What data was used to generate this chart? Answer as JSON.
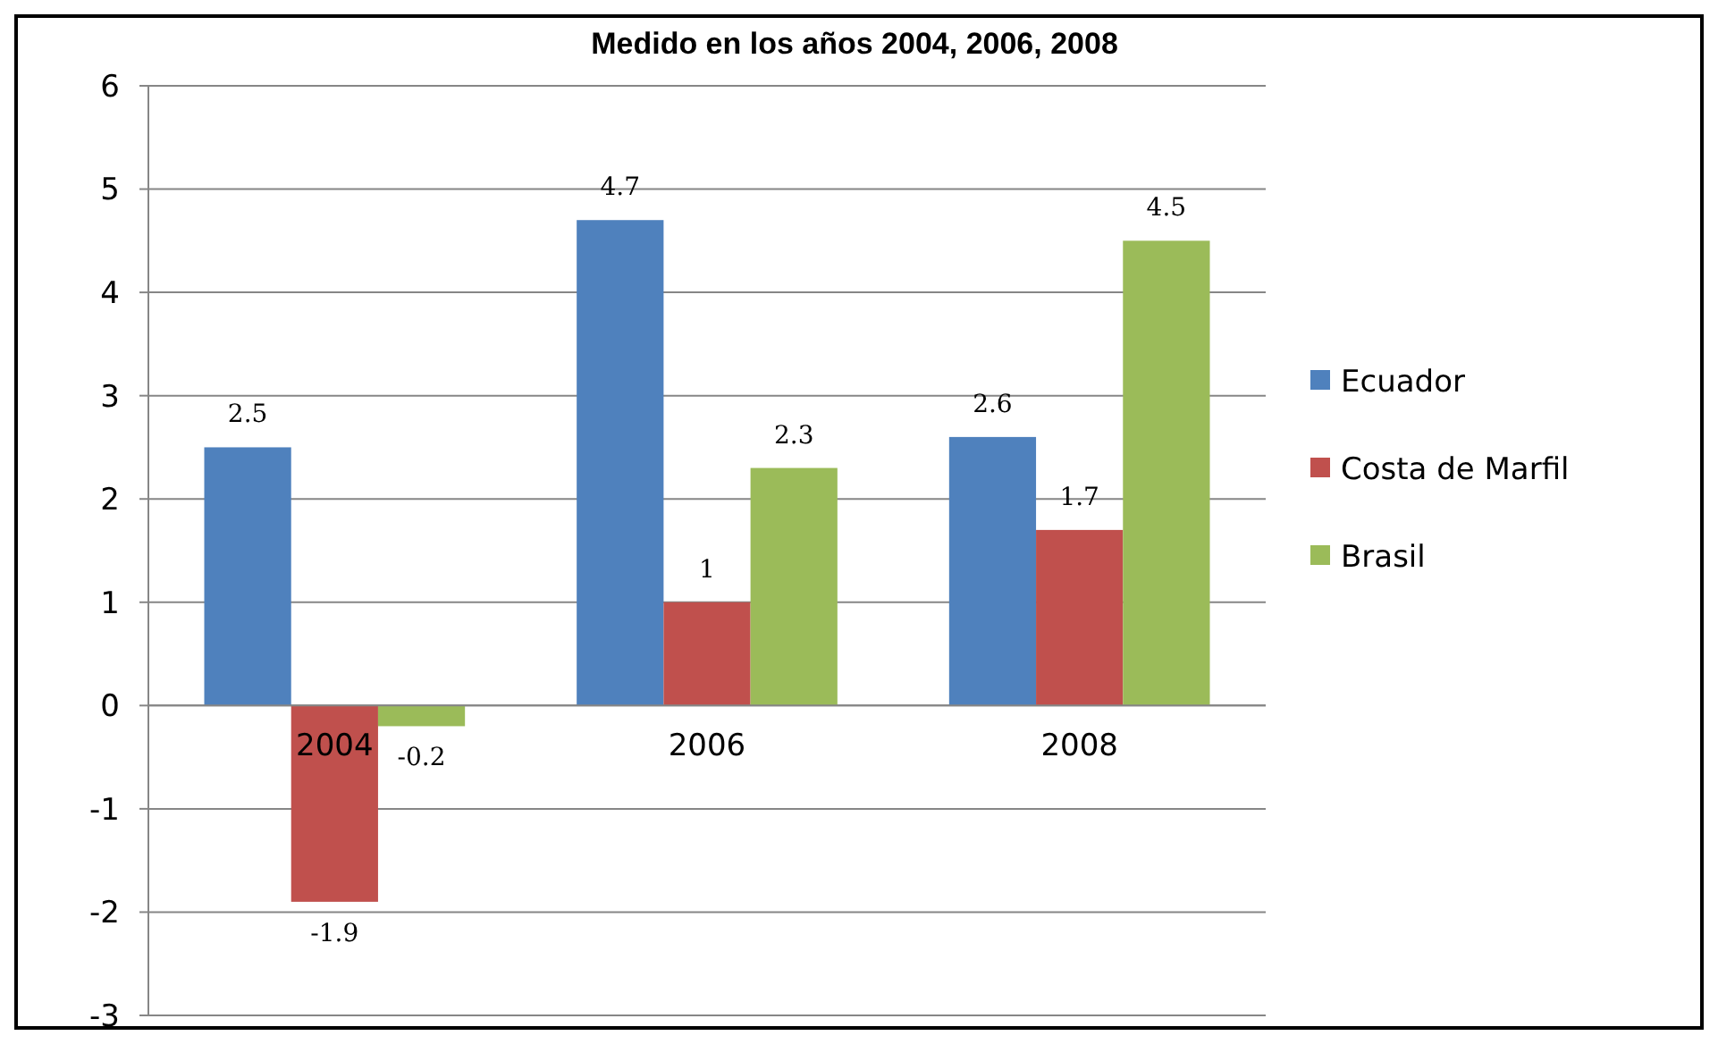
{
  "chart_data": {
    "type": "bar",
    "title": "Medido en los años 2004, 2006, 2008",
    "categories": [
      "2004",
      "2006",
      "2008"
    ],
    "series": [
      {
        "name": "Ecuador",
        "color": "#4f81bd",
        "values": [
          2.5,
          4.7,
          2.6
        ]
      },
      {
        "name": "Costa de Marfil",
        "color": "#c0504d",
        "values": [
          -1.9,
          1,
          1.7
        ]
      },
      {
        "name": "Brasil",
        "color": "#9bbb59",
        "values": [
          -0.2,
          2.3,
          4.5
        ]
      }
    ],
    "ylim": [
      -3,
      6
    ],
    "yticks": [
      -3,
      -2,
      -1,
      0,
      1,
      2,
      3,
      4,
      5,
      6
    ],
    "grid": "y",
    "legend": "right",
    "data_labels": true
  }
}
